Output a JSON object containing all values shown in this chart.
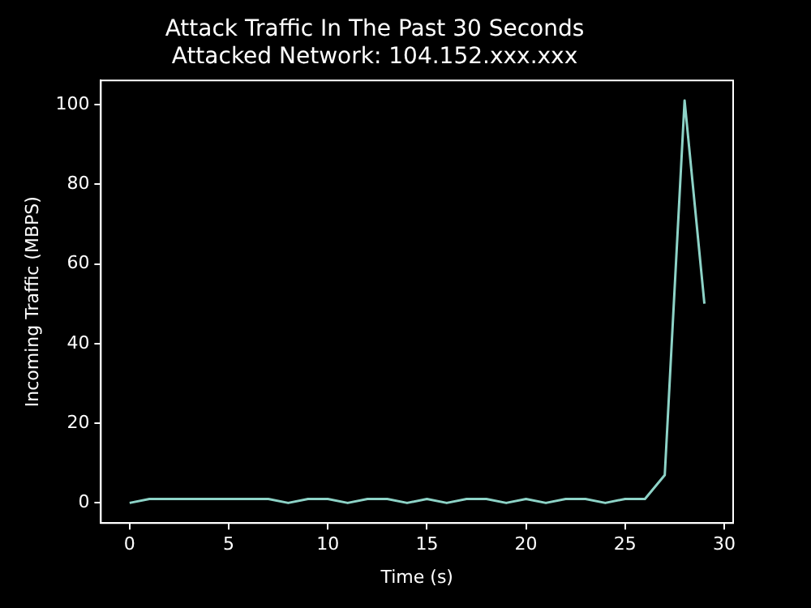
{
  "chart_data": {
    "type": "line",
    "title": "Attack Traffic In The Past 30 Seconds\nAttacked Network: 104.152.xxx.xxx",
    "xlabel": "Time (s)",
    "ylabel": "Incoming Traffic (MBPS)",
    "x": [
      0,
      1,
      2,
      3,
      4,
      5,
      6,
      7,
      8,
      9,
      10,
      11,
      12,
      13,
      14,
      15,
      16,
      17,
      18,
      19,
      20,
      21,
      22,
      23,
      24,
      25,
      26,
      27,
      28,
      29
    ],
    "series": [
      {
        "color": "#8dd3c7",
        "values": [
          0,
          1,
          1,
          1,
          1,
          1,
          1,
          1,
          0,
          1,
          1,
          0,
          1,
          1,
          0,
          1,
          0,
          1,
          1,
          0,
          1,
          0,
          1,
          1,
          0,
          1,
          1,
          7,
          101,
          50
        ]
      }
    ],
    "xlim": [
      -1.45,
      30.45
    ],
    "ylim": [
      -5.05,
      106.05
    ],
    "xticks": [
      0,
      5,
      10,
      15,
      20,
      25,
      30
    ],
    "yticks": [
      0,
      20,
      40,
      60,
      80,
      100
    ],
    "grid": false,
    "legend": false,
    "marker": "none",
    "line_style": "solid"
  }
}
